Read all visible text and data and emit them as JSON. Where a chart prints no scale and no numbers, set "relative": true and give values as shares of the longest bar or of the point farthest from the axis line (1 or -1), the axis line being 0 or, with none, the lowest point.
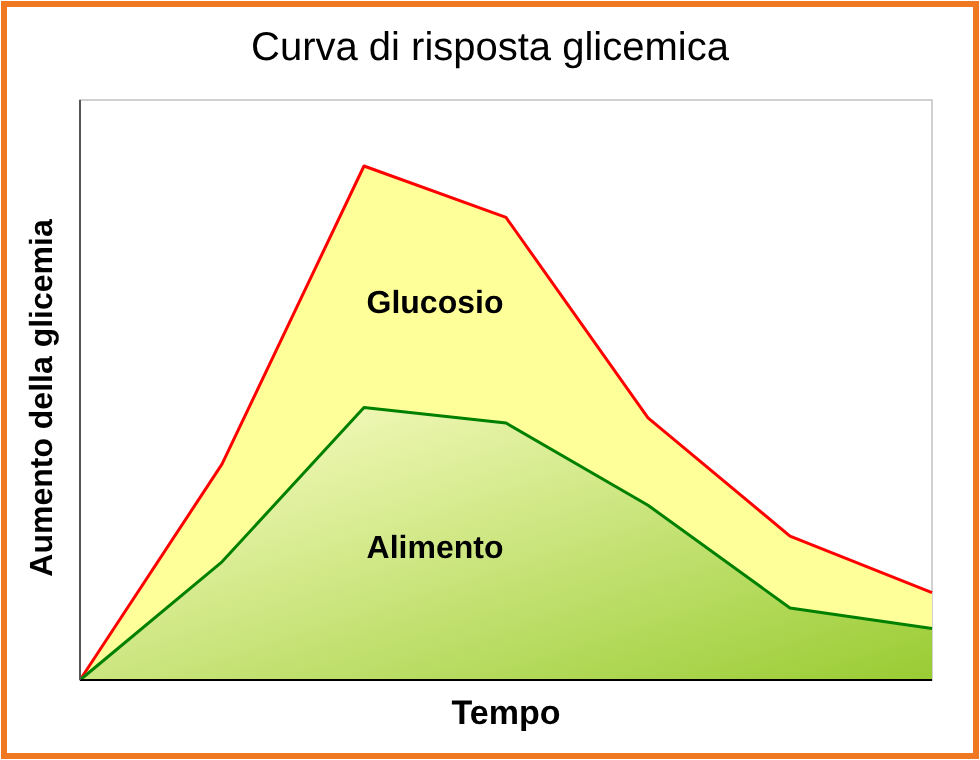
{
  "chart_data": {
    "type": "area",
    "title": "Curva di risposta glicemica",
    "xlabel": "Tempo",
    "ylabel": "Aumento della glicemia",
    "relative": true,
    "categories": [
      null,
      null,
      null,
      null,
      null,
      null,
      null
    ],
    "series": [
      {
        "name": "Glucosio",
        "color": "#ffff99",
        "values": [
          0,
          0.42,
          1,
          0.9,
          0.51,
          0.28,
          0.17
        ]
      },
      {
        "name": "Alimento",
        "color": "#99cc33",
        "values": [
          0,
          0.23,
          0.53,
          0.5,
          0.34,
          0.14,
          0.1
        ]
      }
    ]
  }
}
